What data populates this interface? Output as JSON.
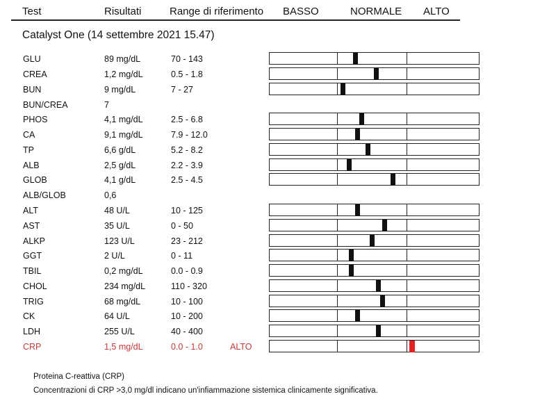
{
  "header": {
    "test": "Test",
    "results": "Risultati",
    "range": "Range di riferimento",
    "low": "BASSO",
    "normal": "NORMALE",
    "high": "ALTO"
  },
  "section_title": "Catalyst One (14 settembre 2021 15.47)",
  "rows": [
    {
      "name": "GLU",
      "value": "89 mg/dL",
      "range": "70 - 143",
      "level": 0.41
    },
    {
      "name": "CREA",
      "value": "1,2 mg/dL",
      "range": "0.5 - 1.8",
      "level": 0.51
    },
    {
      "name": "BUN",
      "value": "9 mg/dL",
      "range": "7 - 27",
      "level": 0.35
    },
    {
      "name": "BUN/CREA",
      "value": "7",
      "range": ""
    },
    {
      "name": "PHOS",
      "value": "4,1 mg/dL",
      "range": "2.5 - 6.8",
      "level": 0.44
    },
    {
      "name": "CA",
      "value": "9,1 mg/dL",
      "range": "7.9 - 12.0",
      "level": 0.42
    },
    {
      "name": "TP",
      "value": "6,6 g/dL",
      "range": "5.2 - 8.2",
      "level": 0.47
    },
    {
      "name": "ALB",
      "value": "2,5 g/dL",
      "range": "2.2 - 3.9",
      "level": 0.38
    },
    {
      "name": "GLOB",
      "value": "4,1 g/dL",
      "range": "2.5 - 4.5",
      "level": 0.59
    },
    {
      "name": "ALB/GLOB",
      "value": "0,6",
      "range": ""
    },
    {
      "name": "ALT",
      "value": "48 U/L",
      "range": "10 - 125",
      "level": 0.42
    },
    {
      "name": "AST",
      "value": "35 U/L",
      "range": "0 - 50",
      "level": 0.55
    },
    {
      "name": "ALKP",
      "value": "123 U/L",
      "range": "23 - 212",
      "level": 0.49
    },
    {
      "name": "GGT",
      "value": "2 U/L",
      "range": "0 - 11",
      "level": 0.39
    },
    {
      "name": "TBIL",
      "value": "0,2 mg/dL",
      "range": "0.0 - 0.9",
      "level": 0.39
    },
    {
      "name": "CHOL",
      "value": "234 mg/dL",
      "range": "110 - 320",
      "level": 0.52
    },
    {
      "name": "TRIG",
      "value": "68 mg/dL",
      "range": "10 - 100",
      "level": 0.54
    },
    {
      "name": "CK",
      "value": "64 U/L",
      "range": "10 - 200",
      "level": 0.42
    },
    {
      "name": "LDH",
      "value": "255 U/L",
      "range": "40 - 400",
      "level": 0.52
    },
    {
      "name": "CRP",
      "value": "1,5 mg/dL",
      "range": "0.0 - 1.0",
      "flag": "ALTO",
      "level": 0.68,
      "alert": true
    }
  ],
  "note": {
    "title": "Proteina C-reattiva (CRP)",
    "text": "Concentrazioni di CRP >3,0 mg/dl indicano un'infiammazione sistemica clinicamente significativa."
  },
  "colors": {
    "alert_text": "#c33a3a",
    "alert_marker": "#e02424"
  }
}
